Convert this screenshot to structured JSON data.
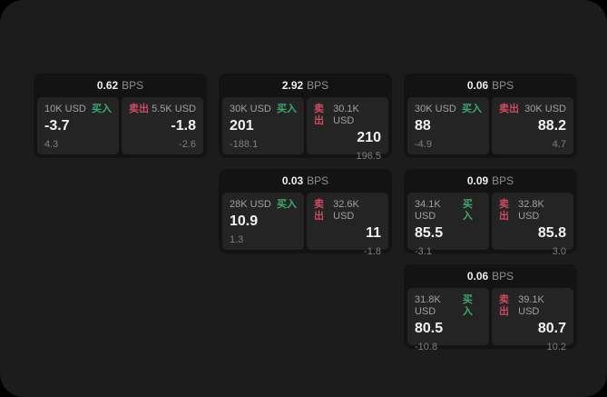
{
  "labels": {
    "bps": "BPS",
    "buy": "买入",
    "sell": "卖出"
  },
  "colors": {
    "outer_bg": "#000000",
    "surface_bg": "#1c1c1c",
    "card_bg": "#131313",
    "panel_bg": "#242424",
    "buy_green": "#3cab73",
    "sell_red": "#cf4a60",
    "price_text": "#f2f2f2",
    "muted_text": "#a0a0a0",
    "sub_text": "#7f7f7f"
  },
  "cards": [
    {
      "bps": "0.62",
      "buy": {
        "size": "10K USD",
        "price": "-3.7",
        "sub": "4.3"
      },
      "sell": {
        "size": "5.5K USD",
        "price": "-1.8",
        "sub": "-2.6"
      }
    },
    {
      "bps": "2.92",
      "buy": {
        "size": "30K USD",
        "price": "201",
        "sub": "-188.1"
      },
      "sell": {
        "size": "30.1K USD",
        "price": "210",
        "sub": "196.5"
      }
    },
    {
      "bps": "0.06",
      "buy": {
        "size": "30K USD",
        "price": "88",
        "sub": "-4.9"
      },
      "sell": {
        "size": "30K USD",
        "price": "88.2",
        "sub": "4.7"
      }
    },
    {
      "bps": "0.03",
      "buy": {
        "size": "28K USD",
        "price": "10.9",
        "sub": "1.3"
      },
      "sell": {
        "size": "32.6K USD",
        "price": "11",
        "sub": "-1.8"
      }
    },
    {
      "bps": "0.09",
      "buy": {
        "size": "34.1K USD",
        "price": "85.5",
        "sub": "-3.1"
      },
      "sell": {
        "size": "32.8K USD",
        "price": "85.8",
        "sub": "3.0"
      }
    },
    {
      "bps": "0.06",
      "buy": {
        "size": "31.8K USD",
        "price": "80.5",
        "sub": "-10.8"
      },
      "sell": {
        "size": "39.1K USD",
        "price": "80.7",
        "sub": "10.2"
      }
    }
  ]
}
